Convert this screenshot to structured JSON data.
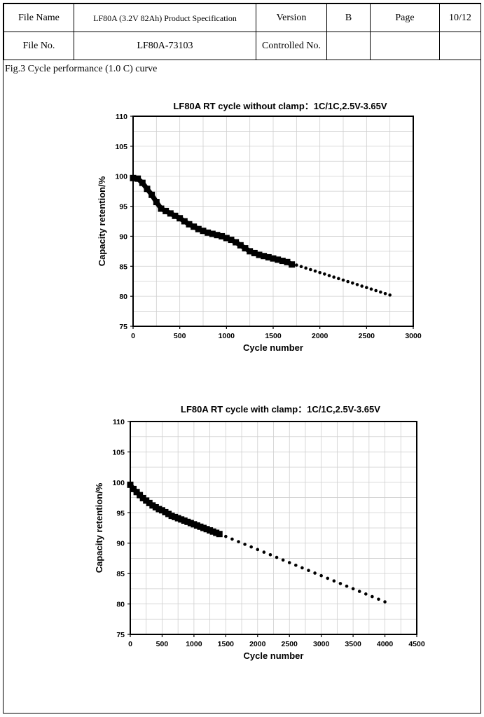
{
  "header": {
    "file_name_label": "File Name",
    "file_name_value": "LF80A (3.2V 82Ah) Product Specification",
    "version_label": "Version",
    "version_value": "B",
    "page_label": "Page",
    "page_value": "10/12",
    "file_no_label": "File No.",
    "file_no_value": "LF80A-73103",
    "controlled_no_label": "Controlled No.",
    "controlled_no_value": ""
  },
  "figure_caption": "Fig.3 Cycle performance (1.0 C) curve",
  "chart_data": [
    {
      "type": "scatter",
      "title": "LF80A RT cycle without clamp：1C/1C,2.5V-3.65V",
      "xlabel": "Cycle number",
      "ylabel": "Capacity retention/%",
      "xlim": [
        0,
        3000
      ],
      "ylim": [
        75,
        110
      ],
      "xticks": [
        0,
        500,
        1000,
        1500,
        2000,
        2500,
        3000
      ],
      "yticks": [
        75,
        80,
        85,
        90,
        95,
        100,
        105,
        110
      ],
      "grid": true,
      "series": [
        {
          "style": "measured",
          "x": [
            0,
            50,
            100,
            150,
            200,
            250,
            300,
            350,
            400,
            450,
            500,
            550,
            600,
            650,
            700,
            750,
            800,
            850,
            900,
            950,
            1000,
            1050,
            1100,
            1150,
            1200,
            1250,
            1300,
            1350,
            1400,
            1450,
            1500,
            1550,
            1600,
            1650,
            1700
          ],
          "y": [
            99.7,
            99.6,
            98.9,
            97.9,
            96.9,
            95.7,
            94.6,
            94.2,
            93.8,
            93.4,
            93.0,
            92.5,
            92.0,
            91.6,
            91.2,
            90.9,
            90.6,
            90.4,
            90.2,
            90.0,
            89.7,
            89.4,
            89.0,
            88.5,
            88.0,
            87.5,
            87.2,
            86.9,
            86.7,
            86.5,
            86.3,
            86.1,
            85.9,
            85.7,
            85.3
          ]
        },
        {
          "style": "extrapolated",
          "x": [
            1750,
            1800,
            1850,
            1900,
            1950,
            2000,
            2050,
            2100,
            2150,
            2200,
            2250,
            2300,
            2350,
            2400,
            2450,
            2500,
            2550,
            2600,
            2650,
            2700,
            2750
          ],
          "y": [
            85.2,
            84.95,
            84.7,
            84.45,
            84.2,
            83.95,
            83.7,
            83.45,
            83.2,
            82.95,
            82.7,
            82.45,
            82.2,
            81.95,
            81.7,
            81.45,
            81.2,
            80.95,
            80.7,
            80.45,
            80.2
          ]
        }
      ]
    },
    {
      "type": "scatter",
      "title": "LF80A RT cycle with clamp：1C/1C,2.5V-3.65V",
      "xlabel": "Cycle number",
      "ylabel": "Capacity retention/%",
      "xlim": [
        0,
        4500
      ],
      "ylim": [
        75,
        110
      ],
      "xticks": [
        0,
        500,
        1000,
        1500,
        2000,
        2500,
        3000,
        3500,
        4000,
        4500
      ],
      "yticks": [
        75,
        80,
        85,
        90,
        95,
        100,
        105,
        110
      ],
      "grid": true,
      "series": [
        {
          "style": "measured",
          "x": [
            0,
            50,
            100,
            150,
            200,
            250,
            300,
            350,
            400,
            450,
            500,
            550,
            600,
            650,
            700,
            750,
            800,
            850,
            900,
            950,
            1000,
            1050,
            1100,
            1150,
            1200,
            1250,
            1300,
            1350,
            1400
          ],
          "y": [
            99.6,
            98.9,
            98.4,
            97.9,
            97.4,
            97.0,
            96.6,
            96.2,
            95.9,
            95.6,
            95.4,
            95.1,
            94.8,
            94.5,
            94.3,
            94.1,
            93.9,
            93.7,
            93.5,
            93.3,
            93.1,
            92.9,
            92.7,
            92.5,
            92.3,
            92.1,
            91.9,
            91.7,
            91.5
          ]
        },
        {
          "style": "extrapolated",
          "x": [
            1500,
            1600,
            1700,
            1800,
            1900,
            2000,
            2100,
            2200,
            2300,
            2400,
            2500,
            2600,
            2700,
            2800,
            2900,
            3000,
            3100,
            3200,
            3300,
            3400,
            3500,
            3600,
            3700,
            3800,
            3900,
            4000
          ],
          "y": [
            91.1,
            90.67,
            90.24,
            89.81,
            89.38,
            88.95,
            88.52,
            88.09,
            87.66,
            87.23,
            86.8,
            86.37,
            85.94,
            85.51,
            85.08,
            84.65,
            84.22,
            83.79,
            83.36,
            82.93,
            82.5,
            82.07,
            81.64,
            81.21,
            80.78,
            80.35
          ]
        }
      ]
    }
  ]
}
